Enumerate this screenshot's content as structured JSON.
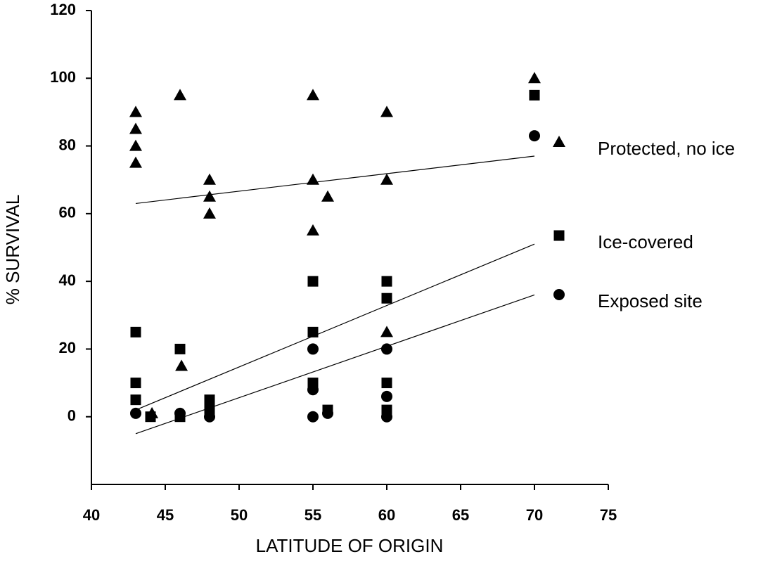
{
  "chart_data": {
    "type": "scatter",
    "x_label": "LATITUDE OF ORIGIN",
    "y_label": "% SURVIVAL",
    "xlim": [
      40,
      75
    ],
    "xticks": [
      40,
      45,
      50,
      55,
      60,
      65,
      70,
      75
    ],
    "ylim": [
      -20,
      120
    ],
    "yticks": [
      0,
      20,
      40,
      60,
      80,
      100,
      120
    ],
    "legend": "right",
    "series": [
      {
        "name": "Protected, no ice",
        "color": "#000000",
        "marker": "triangle",
        "x": [
          43,
          43,
          43,
          43,
          44.1,
          46,
          46.1,
          48,
          48,
          48,
          55,
          55,
          55,
          56,
          60,
          60,
          60,
          70
        ],
        "values": [
          90,
          85,
          80,
          75,
          1,
          95,
          15,
          70,
          65,
          60,
          95,
          70,
          55,
          65,
          90,
          70,
          25,
          100
        ],
        "trend": {
          "x": [
            43,
            70
          ],
          "y": [
            63,
            77
          ]
        }
      },
      {
        "name": "Ice-covered",
        "color": "#000000",
        "marker": "square",
        "x": [
          43,
          43,
          43,
          44,
          46,
          46,
          48,
          48,
          55,
          55,
          55,
          56,
          60,
          60,
          60,
          60,
          70
        ],
        "values": [
          25,
          10,
          5,
          0,
          20,
          0,
          5,
          2,
          40,
          25,
          10,
          2,
          40,
          35,
          10,
          2,
          95
        ],
        "trend": {
          "x": [
            43,
            70
          ],
          "y": [
            2,
            51
          ]
        }
      },
      {
        "name": "Exposed site",
        "color": "#000000",
        "marker": "circle",
        "x": [
          43,
          46,
          48,
          55,
          55,
          55,
          56,
          60,
          60,
          60,
          70
        ],
        "values": [
          1,
          1,
          0,
          20,
          8,
          0,
          1,
          20,
          6,
          0,
          83
        ],
        "trend": {
          "x": [
            43,
            70
          ],
          "y": [
            -5,
            36
          ]
        }
      }
    ]
  }
}
